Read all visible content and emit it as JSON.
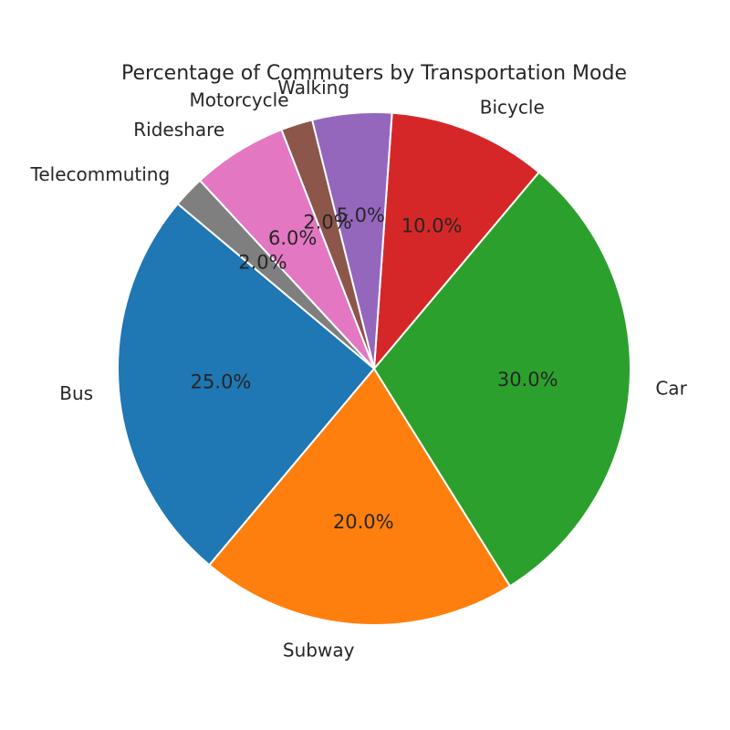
{
  "chart_data": {
    "type": "pie",
    "title": "Percentage of Commuters by Transportation Mode",
    "start_angle_deg": 140,
    "direction": "counterclockwise",
    "slices": [
      {
        "label": "Car",
        "value": 30.0,
        "pct_label": "30.0%",
        "color": "#2ca02c"
      },
      {
        "label": "Bus",
        "value": 25.0,
        "pct_label": "25.0%",
        "color": "#1f77b4"
      },
      {
        "label": "Subway",
        "value": 20.0,
        "pct_label": "20.0%",
        "color": "#ff7f0e"
      },
      {
        "label": "Bicycle",
        "value": 10.0,
        "pct_label": "10.0%",
        "color": "#d62728"
      },
      {
        "label": "Walking",
        "value": 5.0,
        "pct_label": "5.0%",
        "color": "#9467bd"
      },
      {
        "label": "Motorcycle",
        "value": 2.0,
        "pct_label": "2.0%",
        "color": "#8c564b"
      },
      {
        "label": "Rideshare",
        "value": 6.0,
        "pct_label": "6.0%",
        "color": "#e377c2"
      },
      {
        "label": "Telecommuting",
        "value": 2.0,
        "pct_label": "2.0%",
        "color": "#7f7f7f"
      }
    ]
  }
}
